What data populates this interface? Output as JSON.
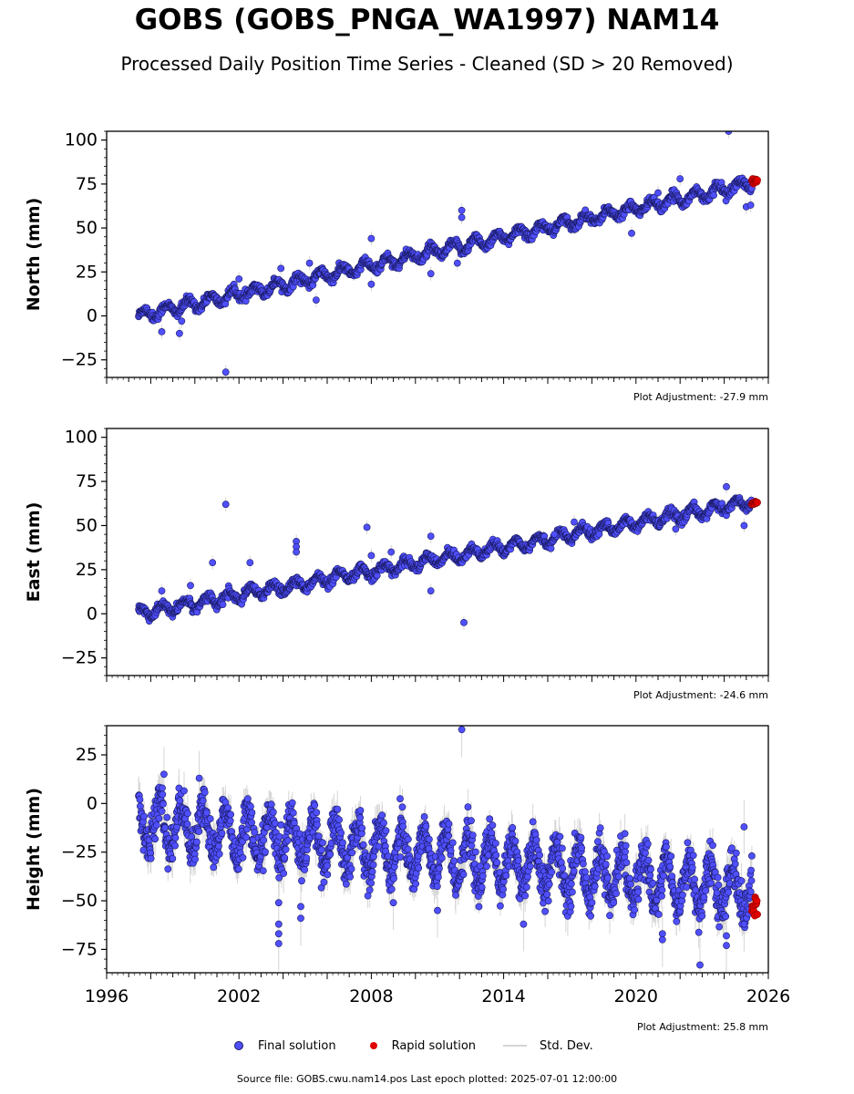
{
  "figure": {
    "title": "GOBS (GOBS_PNGA_WA1997) NAM14",
    "subtitle": "Processed Daily Position Time Series - Cleaned (SD > 20 Removed)",
    "source_line": "Source file: GOBS.cwu.nam14.pos  Last epoch plotted: 2025-07-01 12:00:00"
  },
  "legend": [
    {
      "label": "Final solution",
      "kind": "dot",
      "color": "#4f4fff"
    },
    {
      "label": "Rapid solution",
      "kind": "dot",
      "color": "#e00000"
    },
    {
      "label": "Std. Dev.",
      "kind": "line",
      "color": "#d4d4d4"
    }
  ],
  "colors": {
    "final": "#4f4fff",
    "final_edge": "#1a1a60",
    "rapid": "#e00000",
    "stddev": "#bbbbbb"
  },
  "chart_data": [
    {
      "type": "scatter",
      "ylabel": "North (mm)",
      "ylim": [
        -35,
        105
      ],
      "yticks": [
        -25,
        0,
        25,
        50,
        75,
        100
      ],
      "xlim": [
        1996,
        2026
      ],
      "adjustment": "Plot Adjustment: -27.9 mm",
      "show_xtick_labels": false,
      "start_year": 1997.45,
      "end_year": 2025.5,
      "trend": {
        "start": 0,
        "end": 76
      },
      "noise": {
        "amp": 3,
        "sd": 1.2
      },
      "stddev_height": 4,
      "outliers": [
        {
          "x": 1998.5,
          "y": -9
        },
        {
          "x": 1999.3,
          "y": -10
        },
        {
          "x": 1999.4,
          "y": -3
        },
        {
          "x": 2001.4,
          "y": -32
        },
        {
          "x": 2002.0,
          "y": 21
        },
        {
          "x": 2003.9,
          "y": 27
        },
        {
          "x": 2005.5,
          "y": 9
        },
        {
          "x": 2005.2,
          "y": 30
        },
        {
          "x": 2008.0,
          "y": 44
        },
        {
          "x": 2008.0,
          "y": 18
        },
        {
          "x": 2010.7,
          "y": 24
        },
        {
          "x": 2011.9,
          "y": 30
        },
        {
          "x": 2012.1,
          "y": 60
        },
        {
          "x": 2012.1,
          "y": 56
        },
        {
          "x": 2019.8,
          "y": 47
        },
        {
          "x": 2021.0,
          "y": 70
        },
        {
          "x": 2022.0,
          "y": 78
        },
        {
          "x": 2024.2,
          "y": 105
        },
        {
          "x": 2025.0,
          "y": 62
        },
        {
          "x": 2025.2,
          "y": 63
        }
      ],
      "rapid": {
        "start_year": 2025.25,
        "end_year": 2025.5,
        "y_min": 75,
        "y_max": 78
      }
    },
    {
      "type": "scatter",
      "ylabel": "East (mm)",
      "ylim": [
        -35,
        105
      ],
      "yticks": [
        -25,
        0,
        25,
        50,
        75,
        100
      ],
      "xlim": [
        1996,
        2026
      ],
      "adjustment": "Plot Adjustment: -24.6 mm",
      "show_xtick_labels": false,
      "start_year": 1997.45,
      "end_year": 2025.5,
      "trend": {
        "start": 0,
        "end": 64
      },
      "noise": {
        "amp": 3,
        "sd": 1.2
      },
      "stddev_height": 4,
      "outliers": [
        {
          "x": 1998.5,
          "y": 13
        },
        {
          "x": 1999.8,
          "y": 16
        },
        {
          "x": 2000.8,
          "y": 29
        },
        {
          "x": 2001.4,
          "y": 62
        },
        {
          "x": 2002.5,
          "y": 29
        },
        {
          "x": 2004.6,
          "y": 41
        },
        {
          "x": 2004.6,
          "y": 38
        },
        {
          "x": 2004.6,
          "y": 35
        },
        {
          "x": 2007.8,
          "y": 49
        },
        {
          "x": 2008.0,
          "y": 33
        },
        {
          "x": 2008.9,
          "y": 35
        },
        {
          "x": 2010.7,
          "y": 44
        },
        {
          "x": 2010.7,
          "y": 13
        },
        {
          "x": 2012.2,
          "y": -5
        },
        {
          "x": 2016.3,
          "y": 45
        },
        {
          "x": 2017.2,
          "y": 52
        },
        {
          "x": 2024.1,
          "y": 72
        },
        {
          "x": 2024.9,
          "y": 50
        },
        {
          "x": 2021.8,
          "y": 48
        }
      ],
      "rapid": {
        "start_year": 2025.25,
        "end_year": 2025.5,
        "y_min": 62,
        "y_max": 64
      }
    },
    {
      "type": "scatter",
      "ylabel": "Height (mm)",
      "ylim": [
        -87,
        40
      ],
      "yticks": [
        -75,
        -50,
        -25,
        0,
        25
      ],
      "xlim": [
        1996,
        2026
      ],
      "xticks": [
        1996,
        2002,
        2008,
        2014,
        2020,
        2026
      ],
      "adjustment": "Plot Adjustment: 25.8 mm",
      "show_xtick_labels": true,
      "start_year": 1997.45,
      "end_year": 2025.5,
      "trend": {
        "start": -10,
        "end": -45
      },
      "noise": {
        "amp": 12,
        "sd": 5
      },
      "stddev_height": 14,
      "outliers": [
        {
          "x": 1998.6,
          "y": 15
        },
        {
          "x": 2000.2,
          "y": 13
        },
        {
          "x": 2003.8,
          "y": -51
        },
        {
          "x": 2003.8,
          "y": -62
        },
        {
          "x": 2003.8,
          "y": -67
        },
        {
          "x": 2003.8,
          "y": -72
        },
        {
          "x": 2004.8,
          "y": -53
        },
        {
          "x": 2004.8,
          "y": -59
        },
        {
          "x": 2009.0,
          "y": -51
        },
        {
          "x": 2011.0,
          "y": -55
        },
        {
          "x": 2012.1,
          "y": 38
        },
        {
          "x": 2014.9,
          "y": -62
        },
        {
          "x": 2021.2,
          "y": -67
        },
        {
          "x": 2021.2,
          "y": -70
        },
        {
          "x": 2022.9,
          "y": -83
        },
        {
          "x": 2024.1,
          "y": -68
        },
        {
          "x": 2024.1,
          "y": -73
        },
        {
          "x": 2024.9,
          "y": -12
        },
        {
          "x": 2024.9,
          "y": -62
        }
      ],
      "rapid": {
        "start_year": 2025.25,
        "end_year": 2025.5,
        "y_min": -58,
        "y_max": -46
      }
    }
  ]
}
